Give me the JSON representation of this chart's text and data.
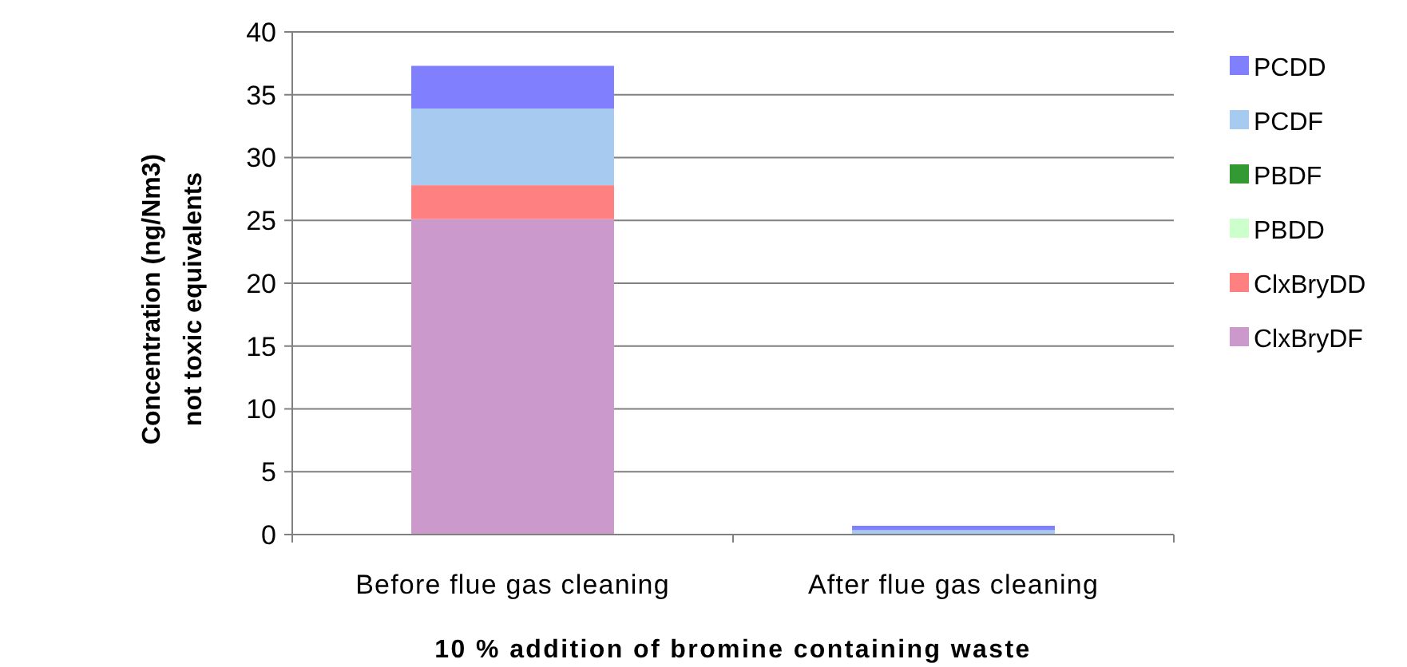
{
  "chart_data": {
    "type": "bar",
    "stacked": true,
    "xlabel": "10 % addition of bromine containing waste",
    "ylabel": "Concentration (ng/Nm3)\nnot toxic equivalents",
    "categories": [
      "Before flue gas cleaning",
      "After flue gas cleaning"
    ],
    "series": [
      {
        "name": "ClxBryDF",
        "color": "#cc99cc",
        "values": [
          25.1,
          0
        ]
      },
      {
        "name": "ClxBryDD",
        "color": "#ff8080",
        "values": [
          2.7,
          0
        ]
      },
      {
        "name": "PBDD",
        "color": "#ccffcc",
        "values": [
          0,
          0
        ]
      },
      {
        "name": "PBDF",
        "color": "#339933",
        "values": [
          0,
          0
        ]
      },
      {
        "name": "PCDF",
        "color": "#a6caf0",
        "values": [
          6.1,
          0.35
        ]
      },
      {
        "name": "PCDD",
        "color": "#8080ff",
        "values": [
          3.4,
          0.35
        ]
      }
    ],
    "ylim": [
      0,
      40
    ],
    "yticks": [
      0,
      5,
      10,
      15,
      20,
      25,
      30,
      35,
      40
    ],
    "grid": "y",
    "legend": "right"
  }
}
